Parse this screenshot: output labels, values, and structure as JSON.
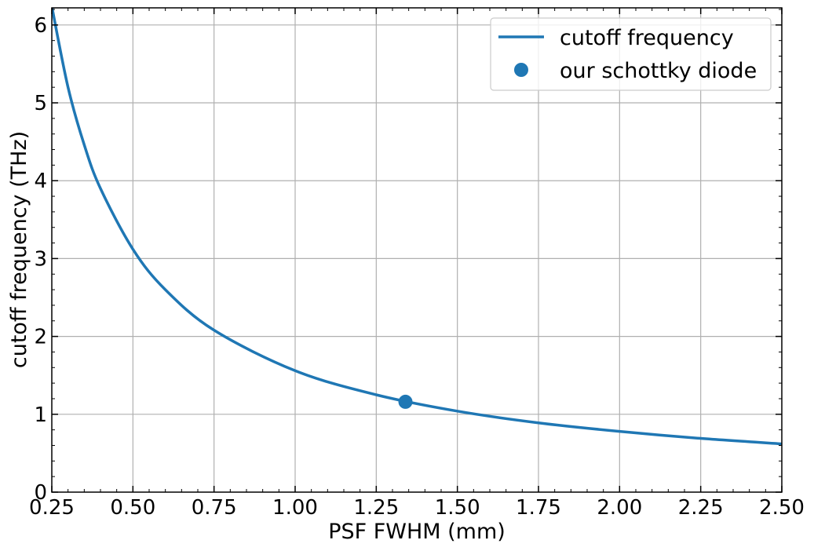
{
  "chart_data": {
    "type": "line",
    "xlabel": "PSF FWHM (mm)",
    "ylabel": "cutoff frequency (THz)",
    "xlim": [
      0.25,
      2.5
    ],
    "ylim": [
      0,
      6.22
    ],
    "xticks": [
      "0.25",
      "0.50",
      "0.75",
      "1.00",
      "1.25",
      "1.50",
      "1.75",
      "2.00",
      "2.25",
      "2.50"
    ],
    "xtick_values": [
      0.25,
      0.5,
      0.75,
      1.0,
      1.25,
      1.5,
      1.75,
      2.0,
      2.25,
      2.5
    ],
    "yticks": [
      "0",
      "1",
      "2",
      "3",
      "4",
      "5",
      "6"
    ],
    "ytick_values": [
      0,
      1,
      2,
      3,
      4,
      5,
      6
    ],
    "grid": true,
    "legend_position": "top-right",
    "series": [
      {
        "name": "cutoff frequency",
        "kind": "line",
        "color": "#1f77b4",
        "x": [
          0.25,
          0.3,
          0.35,
          0.4,
          0.5,
          0.6,
          0.75,
          1.0,
          1.25,
          1.5,
          1.75,
          2.0,
          2.25,
          2.5
        ],
        "y": [
          6.24,
          5.2,
          4.46,
          3.9,
          3.12,
          2.6,
          2.08,
          1.56,
          1.25,
          1.04,
          0.89,
          0.78,
          0.69,
          0.62
        ]
      },
      {
        "name": "our schottky diode",
        "kind": "point",
        "color": "#1f77b4",
        "x": [
          1.34
        ],
        "y": [
          1.16
        ]
      }
    ]
  }
}
